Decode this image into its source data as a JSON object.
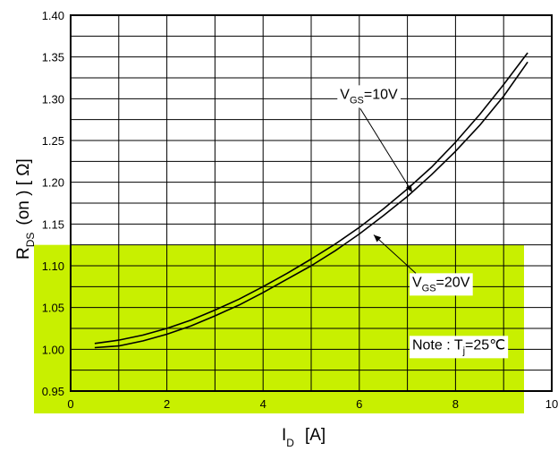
{
  "chart_data": {
    "type": "line",
    "title": "",
    "xlabel": {
      "main": "I",
      "sub": "D",
      "unit": "[A]"
    },
    "ylabel": {
      "main": "R",
      "sub": "DS",
      "rest": "(on ) [ Ω]"
    },
    "xlim": [
      0,
      10
    ],
    "ylim": [
      0.95,
      1.4
    ],
    "x_ticks": [
      0,
      2,
      4,
      6,
      8,
      10
    ],
    "x_tick_labels": [
      "0",
      "2",
      "4",
      "6",
      "8",
      "10"
    ],
    "y_ticks": [
      0.95,
      1.0,
      1.05,
      1.1,
      1.15,
      1.2,
      1.25,
      1.3,
      1.35,
      1.4
    ],
    "y_tick_labels": [
      "0.95",
      "1.00",
      "1.05",
      "1.10",
      "1.15",
      "1.20",
      "1.25",
      "1.30",
      "1.35",
      "1.40"
    ],
    "grid": true,
    "highlight_band": {
      "from": 0.95,
      "to": 1.125,
      "color": "#c8f000"
    },
    "series": [
      {
        "name": "V_GS=10V",
        "x": [
          0.5,
          1,
          1.5,
          2,
          2.5,
          3,
          3.5,
          4,
          4.5,
          5,
          5.5,
          6,
          6.5,
          7,
          7.5,
          8,
          8.5,
          9,
          9.5
        ],
        "y": [
          1.007,
          1.011,
          1.017,
          1.025,
          1.035,
          1.047,
          1.06,
          1.075,
          1.091,
          1.108,
          1.126,
          1.146,
          1.168,
          1.192,
          1.218,
          1.248,
          1.281,
          1.317,
          1.355
        ]
      },
      {
        "name": "V_GS=20V",
        "x": [
          0.5,
          1,
          1.5,
          2,
          2.5,
          3,
          3.5,
          4,
          4.5,
          5,
          5.5,
          6,
          6.5,
          7,
          7.5,
          8,
          8.5,
          9,
          9.5
        ],
        "y": [
          1.002,
          1.004,
          1.01,
          1.018,
          1.028,
          1.04,
          1.053,
          1.068,
          1.084,
          1.1,
          1.118,
          1.138,
          1.16,
          1.183,
          1.209,
          1.237,
          1.268,
          1.303,
          1.344
        ]
      }
    ],
    "annotations": [
      {
        "main": "V",
        "sub": "GS",
        "rest": "=10V",
        "x": 5.6,
        "y": 1.3,
        "arrow_to": [
          7.1,
          1.188
        ]
      },
      {
        "main": "V",
        "sub": "GS",
        "rest": "=20V",
        "x": 7.1,
        "y": 1.075,
        "arrow_to": [
          6.3,
          1.137
        ]
      },
      {
        "main": "Note : T",
        "sub": "j",
        "rest": "=25℃",
        "x": 7.1,
        "y": 1.0
      }
    ]
  }
}
